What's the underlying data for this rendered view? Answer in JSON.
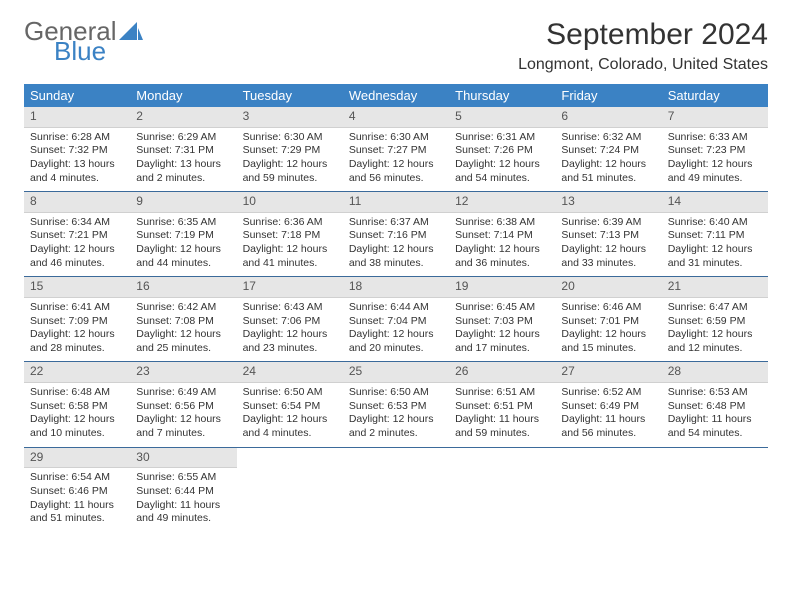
{
  "logo": {
    "text1": "General",
    "text2": "Blue"
  },
  "title": "September 2024",
  "location": "Longmont, Colorado, United States",
  "colors": {
    "header_bg": "#3b82c4",
    "header_text": "#ffffff",
    "daynum_bg": "#e6e6e6",
    "week_border": "#3b6a9a",
    "text": "#333333",
    "logo_gray": "#666666",
    "logo_blue": "#3b82c4"
  },
  "day_names": [
    "Sunday",
    "Monday",
    "Tuesday",
    "Wednesday",
    "Thursday",
    "Friday",
    "Saturday"
  ],
  "weeks": [
    [
      {
        "n": "1",
        "sr": "6:28 AM",
        "ss": "7:32 PM",
        "dl": "13 hours and 4 minutes."
      },
      {
        "n": "2",
        "sr": "6:29 AM",
        "ss": "7:31 PM",
        "dl": "13 hours and 2 minutes."
      },
      {
        "n": "3",
        "sr": "6:30 AM",
        "ss": "7:29 PM",
        "dl": "12 hours and 59 minutes."
      },
      {
        "n": "4",
        "sr": "6:30 AM",
        "ss": "7:27 PM",
        "dl": "12 hours and 56 minutes."
      },
      {
        "n": "5",
        "sr": "6:31 AM",
        "ss": "7:26 PM",
        "dl": "12 hours and 54 minutes."
      },
      {
        "n": "6",
        "sr": "6:32 AM",
        "ss": "7:24 PM",
        "dl": "12 hours and 51 minutes."
      },
      {
        "n": "7",
        "sr": "6:33 AM",
        "ss": "7:23 PM",
        "dl": "12 hours and 49 minutes."
      }
    ],
    [
      {
        "n": "8",
        "sr": "6:34 AM",
        "ss": "7:21 PM",
        "dl": "12 hours and 46 minutes."
      },
      {
        "n": "9",
        "sr": "6:35 AM",
        "ss": "7:19 PM",
        "dl": "12 hours and 44 minutes."
      },
      {
        "n": "10",
        "sr": "6:36 AM",
        "ss": "7:18 PM",
        "dl": "12 hours and 41 minutes."
      },
      {
        "n": "11",
        "sr": "6:37 AM",
        "ss": "7:16 PM",
        "dl": "12 hours and 38 minutes."
      },
      {
        "n": "12",
        "sr": "6:38 AM",
        "ss": "7:14 PM",
        "dl": "12 hours and 36 minutes."
      },
      {
        "n": "13",
        "sr": "6:39 AM",
        "ss": "7:13 PM",
        "dl": "12 hours and 33 minutes."
      },
      {
        "n": "14",
        "sr": "6:40 AM",
        "ss": "7:11 PM",
        "dl": "12 hours and 31 minutes."
      }
    ],
    [
      {
        "n": "15",
        "sr": "6:41 AM",
        "ss": "7:09 PM",
        "dl": "12 hours and 28 minutes."
      },
      {
        "n": "16",
        "sr": "6:42 AM",
        "ss": "7:08 PM",
        "dl": "12 hours and 25 minutes."
      },
      {
        "n": "17",
        "sr": "6:43 AM",
        "ss": "7:06 PM",
        "dl": "12 hours and 23 minutes."
      },
      {
        "n": "18",
        "sr": "6:44 AM",
        "ss": "7:04 PM",
        "dl": "12 hours and 20 minutes."
      },
      {
        "n": "19",
        "sr": "6:45 AM",
        "ss": "7:03 PM",
        "dl": "12 hours and 17 minutes."
      },
      {
        "n": "20",
        "sr": "6:46 AM",
        "ss": "7:01 PM",
        "dl": "12 hours and 15 minutes."
      },
      {
        "n": "21",
        "sr": "6:47 AM",
        "ss": "6:59 PM",
        "dl": "12 hours and 12 minutes."
      }
    ],
    [
      {
        "n": "22",
        "sr": "6:48 AM",
        "ss": "6:58 PM",
        "dl": "12 hours and 10 minutes."
      },
      {
        "n": "23",
        "sr": "6:49 AM",
        "ss": "6:56 PM",
        "dl": "12 hours and 7 minutes."
      },
      {
        "n": "24",
        "sr": "6:50 AM",
        "ss": "6:54 PM",
        "dl": "12 hours and 4 minutes."
      },
      {
        "n": "25",
        "sr": "6:50 AM",
        "ss": "6:53 PM",
        "dl": "12 hours and 2 minutes."
      },
      {
        "n": "26",
        "sr": "6:51 AM",
        "ss": "6:51 PM",
        "dl": "11 hours and 59 minutes."
      },
      {
        "n": "27",
        "sr": "6:52 AM",
        "ss": "6:49 PM",
        "dl": "11 hours and 56 minutes."
      },
      {
        "n": "28",
        "sr": "6:53 AM",
        "ss": "6:48 PM",
        "dl": "11 hours and 54 minutes."
      }
    ],
    [
      {
        "n": "29",
        "sr": "6:54 AM",
        "ss": "6:46 PM",
        "dl": "11 hours and 51 minutes."
      },
      {
        "n": "30",
        "sr": "6:55 AM",
        "ss": "6:44 PM",
        "dl": "11 hours and 49 minutes."
      },
      null,
      null,
      null,
      null,
      null
    ]
  ]
}
